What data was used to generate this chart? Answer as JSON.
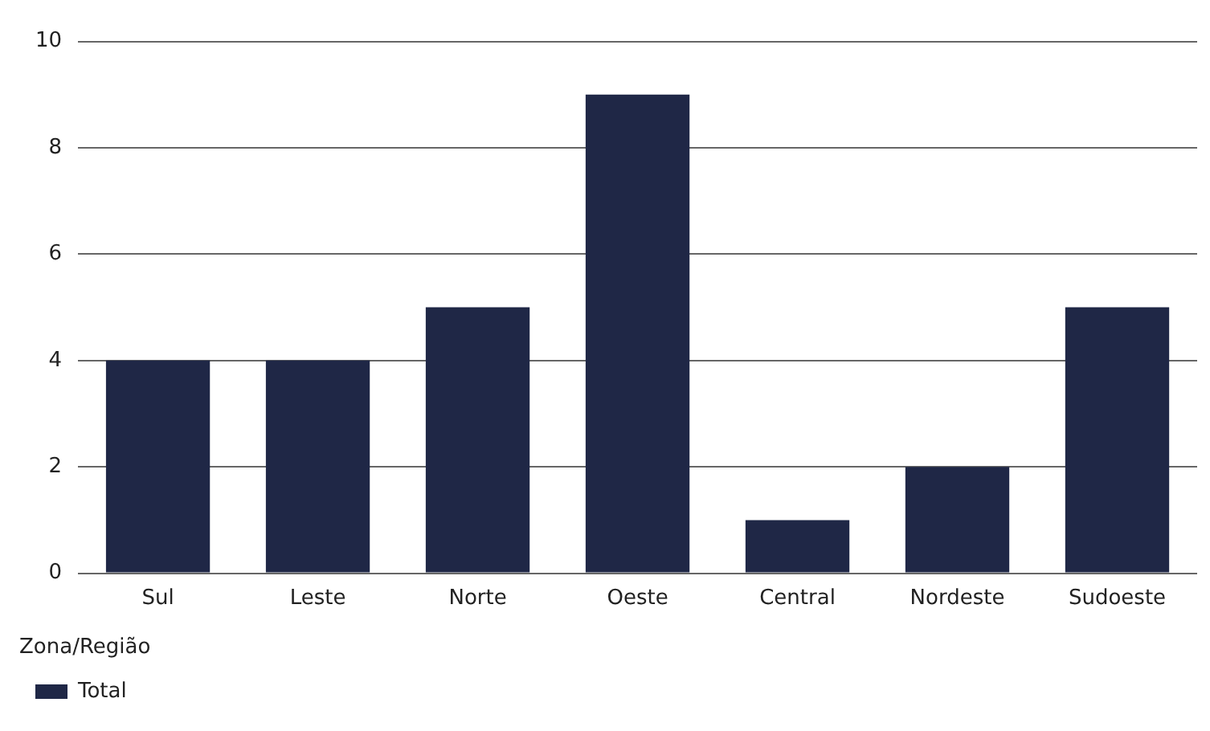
{
  "chart_data": {
    "type": "bar",
    "legend_title": "Zona/Região",
    "categories": [
      "Sul",
      "Leste",
      "Norte",
      "Oeste",
      "Central",
      "Nordeste",
      "Sudoeste"
    ],
    "series": [
      {
        "name": "Total",
        "color": "#1f2746",
        "values": [
          4,
          4,
          5,
          9,
          1,
          2,
          5
        ]
      }
    ],
    "ylim": [
      0,
      10
    ],
    "yticks": [
      0,
      2,
      4,
      6,
      8,
      10
    ],
    "grid": "y",
    "legend": "bottom left"
  }
}
